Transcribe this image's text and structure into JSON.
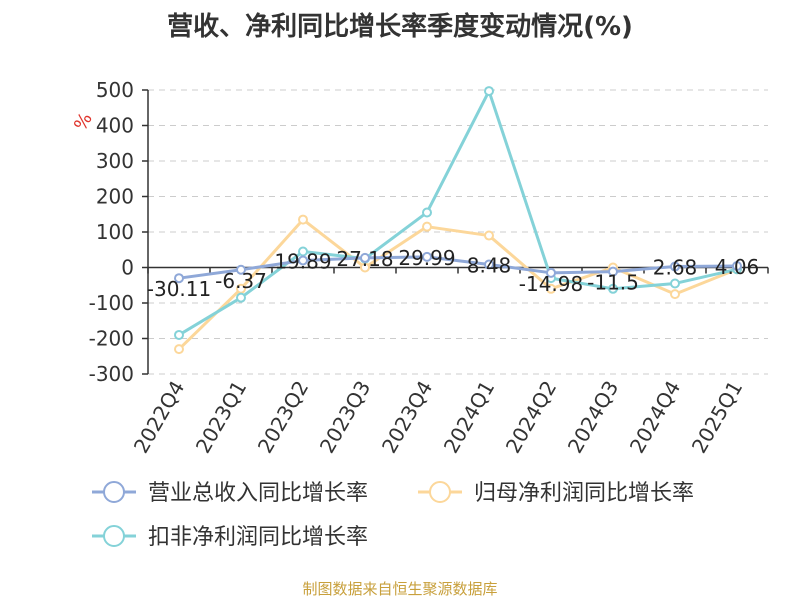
{
  "title": "营收、净利同比增长率季度变动情况(%)",
  "source": "制图数据来自恒生聚源数据库",
  "chart_data": {
    "type": "line",
    "ylabel": "%",
    "ylim": [
      -300,
      500
    ],
    "yticks": [
      500,
      400,
      300,
      200,
      100,
      0,
      -100,
      -200,
      -300
    ],
    "grid": true,
    "legend_position": "bottom",
    "categories": [
      "2022Q4",
      "2023Q1",
      "2023Q2",
      "2023Q3",
      "2023Q4",
      "2024Q1",
      "2024Q2",
      "2024Q3",
      "2024Q4",
      "2025Q1"
    ],
    "series": [
      {
        "name": "营业总收入同比增长率",
        "color": "#8fa8d8",
        "values": [
          -30.11,
          -6.37,
          19.89,
          27.18,
          29.99,
          8.48,
          -14.98,
          -11.5,
          2.68,
          4.06
        ],
        "labels": [
          "-30.11",
          "-6.37",
          "19.89",
          "27.18",
          "29.99",
          "8.48",
          "-14.98",
          "-11.5",
          "2.68",
          "4.06"
        ]
      },
      {
        "name": "归母净利润同比增长率",
        "color": "#fcd79a",
        "values": [
          -230,
          -60,
          135,
          0,
          115,
          90,
          -60,
          0,
          -75,
          -5
        ]
      },
      {
        "name": "扣非净利润同比增长率",
        "color": "#84d2d8",
        "values": [
          -190,
          -85,
          45,
          25,
          155,
          497,
          -30,
          -60,
          -45,
          -5
        ]
      }
    ]
  }
}
